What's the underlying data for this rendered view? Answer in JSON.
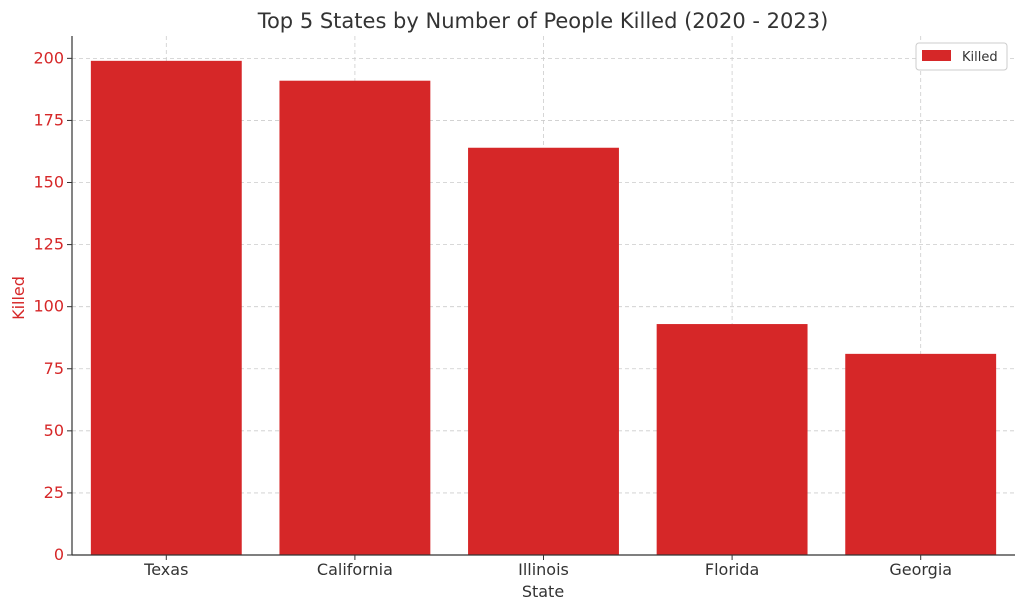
{
  "chart_data": {
    "type": "bar",
    "title": "Top 5 States by Number of People Killed (2020 - 2023)",
    "xlabel": "State",
    "ylabel": "Killed",
    "categories": [
      "Texas",
      "California",
      "Illinois",
      "Florida",
      "Georgia"
    ],
    "series": [
      {
        "name": "Killed",
        "values": [
          199,
          191,
          164,
          93,
          81
        ]
      }
    ],
    "ylim": [
      0,
      209
    ],
    "yticks": [
      0,
      25,
      50,
      75,
      100,
      125,
      150,
      175,
      200
    ],
    "grid": true,
    "legend": "top-right",
    "colors": {
      "bar": "#d62728",
      "ylabel": "#d62728",
      "yticks": "#d62728",
      "xticks": "#333333",
      "grid": "#cccccc",
      "axis": "#333333"
    }
  }
}
